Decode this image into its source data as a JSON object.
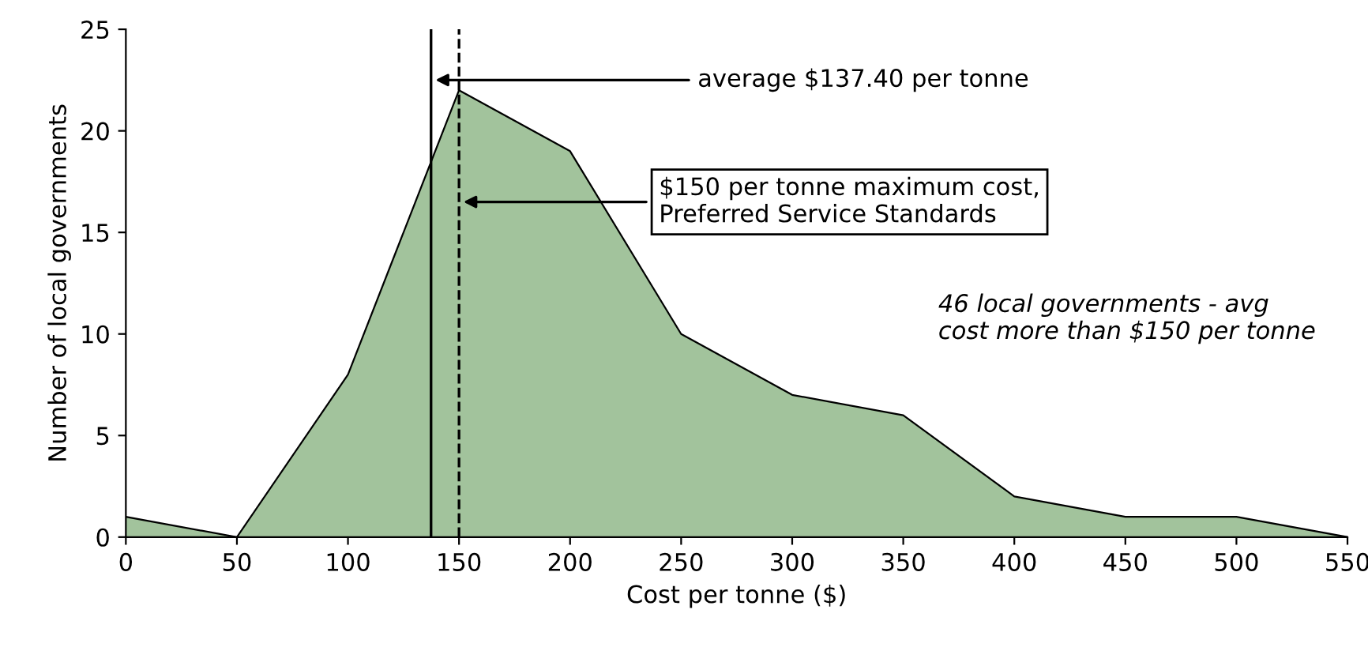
{
  "chart_data": {
    "type": "area",
    "x": [
      0,
      50,
      100,
      150,
      200,
      250,
      300,
      350,
      400,
      450,
      500,
      550
    ],
    "values": [
      1,
      0,
      8,
      22,
      19,
      10,
      7,
      6,
      2,
      1,
      1,
      0
    ],
    "color": "#a2c39c",
    "xlabel": "Cost per tonne ($)",
    "ylabel": "Number of local governments",
    "xlim": [
      0,
      550
    ],
    "xticks": [
      0,
      50,
      100,
      150,
      200,
      250,
      300,
      350,
      400,
      450,
      500,
      550
    ],
    "ylim": [
      0,
      25
    ],
    "yticks": [
      0,
      5,
      10,
      15,
      20,
      25
    ],
    "grid": false,
    "legend": false,
    "ref_lines": [
      {
        "axis": "x",
        "value": 137.4,
        "label": "average $137.40 per tonne",
        "line_style": "solid",
        "color": "#000000"
      },
      {
        "axis": "x",
        "value": 150,
        "label": "$150 per tonne maximum cost,\nPreferred Service Standards",
        "line_style": "dashed",
        "color": "#000000"
      }
    ],
    "annotations": [
      "46 local governments - avg\ncost more than $150 per tonne"
    ]
  }
}
